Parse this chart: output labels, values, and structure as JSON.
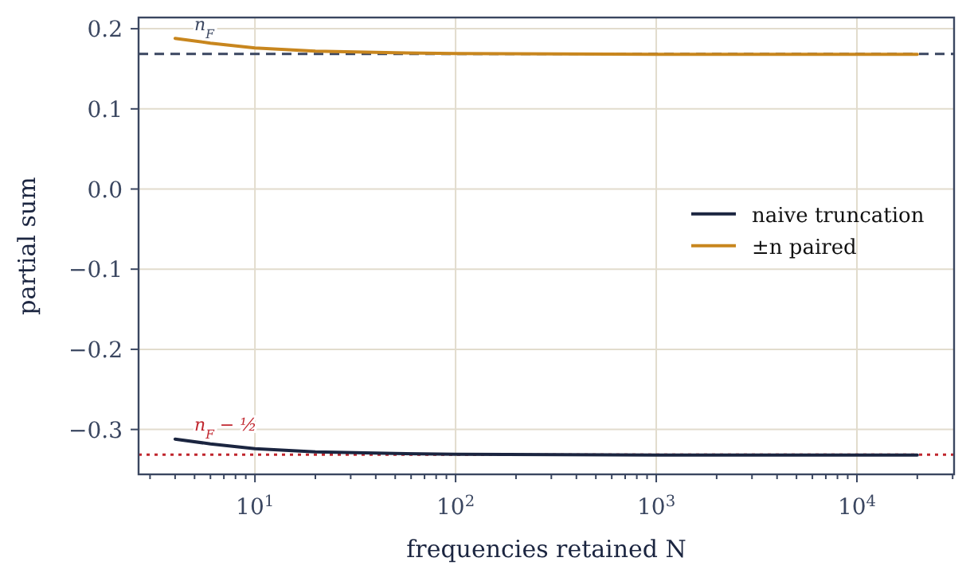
{
  "chart_data": {
    "type": "line",
    "xlabel": "frequencies retained N",
    "ylabel": "partial sum",
    "log": "x",
    "grid": true,
    "legend": "right",
    "xlim": [
      2.63,
      30500
    ],
    "ylim": [
      -0.356,
      0.214
    ],
    "xticks": [
      {
        "value": 3,
        "label": null
      },
      {
        "value": 4,
        "label": null
      },
      {
        "value": 5,
        "label": null
      },
      {
        "value": 6,
        "label": null
      },
      {
        "value": 7,
        "label": null
      },
      {
        "value": 8,
        "label": null
      },
      {
        "value": 9,
        "label": null
      },
      {
        "value": 10,
        "label": "10$^{1}$"
      },
      {
        "value": 20,
        "label": null
      },
      {
        "value": 30,
        "label": null
      },
      {
        "value": 40,
        "label": null
      },
      {
        "value": 50,
        "label": null
      },
      {
        "value": 60,
        "label": null
      },
      {
        "value": 70,
        "label": null
      },
      {
        "value": 80,
        "label": null
      },
      {
        "value": 90,
        "label": null
      },
      {
        "value": 100,
        "label": "10$^{2}$"
      },
      {
        "value": 200,
        "label": null
      },
      {
        "value": 300,
        "label": null
      },
      {
        "value": 400,
        "label": null
      },
      {
        "value": 500,
        "label": null
      },
      {
        "value": 600,
        "label": null
      },
      {
        "value": 700,
        "label": null
      },
      {
        "value": 800,
        "label": null
      },
      {
        "value": 900,
        "label": null
      },
      {
        "value": 1000,
        "label": "10$^{3}$"
      },
      {
        "value": 2000,
        "label": null
      },
      {
        "value": 3000,
        "label": null
      },
      {
        "value": 4000,
        "label": null
      },
      {
        "value": 5000,
        "label": null
      },
      {
        "value": 6000,
        "label": null
      },
      {
        "value": 7000,
        "label": null
      },
      {
        "value": 8000,
        "label": null
      },
      {
        "value": 9000,
        "label": null
      },
      {
        "value": 10000,
        "label": "10$^{4}$"
      },
      {
        "value": 20000,
        "label": null
      },
      {
        "value": 30000,
        "label": null
      }
    ],
    "yticks": [
      {
        "value": -0.3,
        "label": "−0.3"
      },
      {
        "value": -0.2,
        "label": "−0.2"
      },
      {
        "value": -0.1,
        "label": "−0.1"
      },
      {
        "value": 0,
        "label": "0.0"
      },
      {
        "value": 0.1,
        "label": "0.1"
      },
      {
        "value": 0.2,
        "label": "0.2"
      }
    ],
    "x": [
      4,
      6,
      10,
      20,
      50,
      100,
      1000,
      20000
    ],
    "series": [
      {
        "name": "naive truncation",
        "color": "#1b2540",
        "values": [
          -0.312,
          -0.318,
          -0.324,
          -0.328,
          -0.33,
          -0.331,
          -0.332,
          -0.332
        ]
      },
      {
        "name": "±n paired",
        "color": "#c8861e",
        "values": [
          0.188,
          0.182,
          0.176,
          0.172,
          0.17,
          0.169,
          0.168,
          0.168
        ]
      }
    ],
    "ref_lines": [
      {
        "axis": "y",
        "value": 0.1685,
        "label": "n$_{F}$",
        "color": "#3a4660",
        "line_style": "dashed"
      },
      {
        "axis": "y",
        "value": -0.3315,
        "label": "n$_{F}$ − ½",
        "color": "#c0262e",
        "line_style": "dotted"
      }
    ]
  }
}
